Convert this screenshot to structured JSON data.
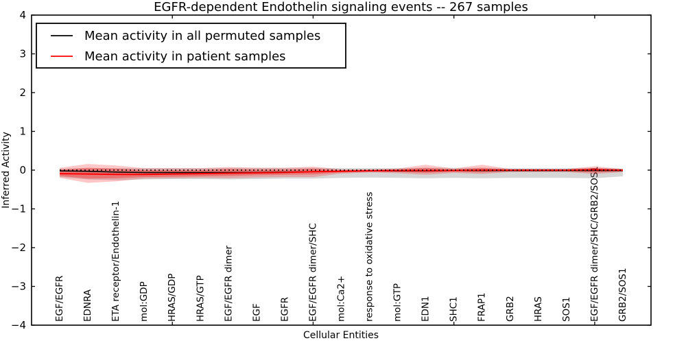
{
  "title": "EGFR-dependent Endothelin signaling events -- 267 samples",
  "axes": {
    "x_label": "Cellular Entities",
    "y_label": "Inferred Activity",
    "y_ticks": [
      {
        "label": "4",
        "value": 4
      },
      {
        "label": "3",
        "value": 3
      },
      {
        "label": "2",
        "value": 2
      },
      {
        "label": "1",
        "value": 1
      },
      {
        "label": "0",
        "value": 0
      },
      {
        "label": "−1",
        "value": -1
      },
      {
        "label": "−2",
        "value": -2
      },
      {
        "label": "−3",
        "value": -3
      },
      {
        "label": "−4",
        "value": -4
      }
    ]
  },
  "legend": {
    "items": [
      {
        "label": "Mean activity in all permuted samples",
        "color": "#000000"
      },
      {
        "label": "Mean activity in patient samples",
        "color": "#ff0000"
      }
    ]
  },
  "chart_data": {
    "type": "line",
    "title": "EGFR-dependent Endothelin signaling events -- 267 samples",
    "xlabel": "Cellular Entities",
    "ylabel": "Inferred Activity",
    "ylim": [
      -4,
      4
    ],
    "x_range": [
      0,
      22
    ],
    "x_major_ticks": [
      5,
      10,
      15,
      20
    ],
    "grid": false,
    "legend_position": "upper left",
    "categories": [
      "EGF/EGFR",
      "EDNRA",
      "ETA receptor/Endothelin-1",
      "mol:GDP",
      "HRAS/GDP",
      "HRAS/GTP",
      "EGF/EGFR dimer",
      "EGF",
      "EGFR",
      "EGF/EGFR dimer/SHC",
      "mol:Ca2+",
      "response to oxidative stress",
      "mol:GTP",
      "EDN1",
      "SHC1",
      "FRAP1",
      "GRB2",
      "HRAS",
      "SOS1",
      "EGF/EGFR dimer/SHC/GRB2/SOS1",
      "GRB2/SOS1"
    ],
    "series": [
      {
        "name": "Mean activity in all permuted samples",
        "color": "#000000",
        "style": "solid",
        "width": 1.6,
        "values": [
          -0.02,
          -0.03,
          -0.05,
          -0.06,
          -0.06,
          -0.06,
          -0.06,
          -0.06,
          -0.05,
          -0.04,
          -0.03,
          -0.02,
          -0.02,
          -0.02,
          -0.01,
          -0.01,
          -0.01,
          -0.01,
          -0.01,
          -0.01,
          -0.01
        ]
      },
      {
        "name": "Mean activity in patient samples",
        "color": "#ff0000",
        "style": "solid",
        "width": 2.0,
        "values": [
          -0.09,
          -0.1,
          -0.11,
          -0.11,
          -0.1,
          -0.09,
          -0.08,
          -0.07,
          -0.06,
          -0.04,
          -0.03,
          -0.02,
          -0.01,
          -0.01,
          -0.01,
          0.0,
          0.0,
          0.0,
          0.0,
          0.01,
          0.0
        ]
      }
    ],
    "zero_line": {
      "value": 0,
      "color": "#000000",
      "style": "dotted",
      "width": 1.5
    },
    "bands": [
      {
        "name": "permuted-sample-range",
        "color": "#808080",
        "opacity": 0.32,
        "upper": [
          0.04,
          0.05,
          0.05,
          0.05,
          0.05,
          0.05,
          0.06,
          0.06,
          0.06,
          0.06,
          0.05,
          0.05,
          0.05,
          0.06,
          0.06,
          0.06,
          0.05,
          0.05,
          0.05,
          0.06,
          0.04
        ],
        "lower": [
          -0.18,
          -0.24,
          -0.26,
          -0.24,
          -0.23,
          -0.23,
          -0.24,
          -0.23,
          -0.22,
          -0.22,
          -0.2,
          -0.19,
          -0.2,
          -0.21,
          -0.2,
          -0.21,
          -0.2,
          -0.2,
          -0.2,
          -0.21,
          -0.16
        ]
      },
      {
        "name": "patient-sample-range-outer",
        "color": "#ff0000",
        "opacity": 0.22,
        "upper": [
          0.06,
          0.16,
          0.12,
          0.05,
          0.05,
          0.05,
          0.08,
          0.06,
          0.06,
          0.09,
          0.02,
          0.02,
          0.04,
          0.14,
          0.04,
          0.14,
          0.03,
          0.03,
          0.03,
          0.1,
          0.03
        ],
        "lower": [
          -0.2,
          -0.33,
          -0.29,
          -0.22,
          -0.21,
          -0.2,
          -0.21,
          -0.19,
          -0.18,
          -0.18,
          -0.09,
          -0.06,
          -0.08,
          -0.12,
          -0.07,
          -0.1,
          -0.05,
          -0.05,
          -0.05,
          -0.1,
          -0.05
        ]
      },
      {
        "name": "patient-sample-range-inner",
        "color": "#ff0000",
        "opacity": 0.3,
        "upper": [
          0.01,
          0.06,
          0.04,
          0.0,
          0.0,
          0.0,
          0.03,
          0.01,
          0.01,
          0.04,
          0.0,
          0.01,
          0.02,
          0.06,
          0.02,
          0.06,
          0.01,
          0.01,
          0.01,
          0.05,
          0.01
        ],
        "lower": [
          -0.15,
          -0.22,
          -0.21,
          -0.18,
          -0.17,
          -0.16,
          -0.15,
          -0.13,
          -0.12,
          -0.11,
          -0.06,
          -0.04,
          -0.05,
          -0.07,
          -0.04,
          -0.06,
          -0.03,
          -0.03,
          -0.03,
          -0.06,
          -0.03
        ]
      }
    ]
  }
}
